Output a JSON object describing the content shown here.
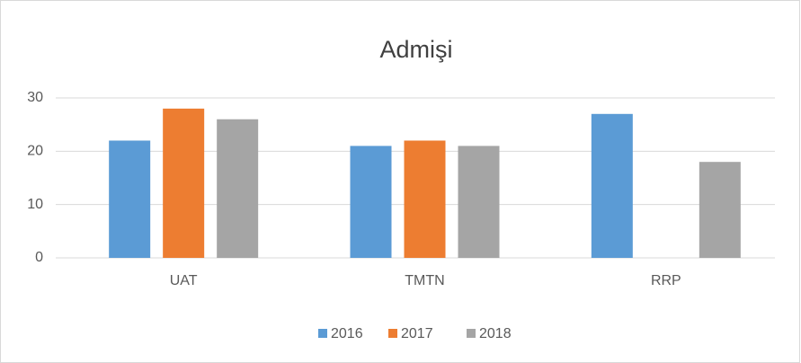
{
  "chart_data": {
    "type": "bar",
    "title": "Admişi",
    "categories": [
      "UAT",
      "TMTN",
      "RRP"
    ],
    "series": [
      {
        "name": "2016",
        "color": "#5b9bd5",
        "values": [
          22,
          21,
          27
        ]
      },
      {
        "name": "2017",
        "color": "#ed7d31",
        "values": [
          28,
          22,
          null
        ]
      },
      {
        "name": "2018",
        "color": "#a5a5a5",
        "values": [
          26,
          21,
          18
        ]
      }
    ],
    "ylim": [
      0,
      30
    ],
    "yticks": [
      0,
      10,
      20,
      30
    ],
    "grid": true,
    "legend": "bottom"
  }
}
